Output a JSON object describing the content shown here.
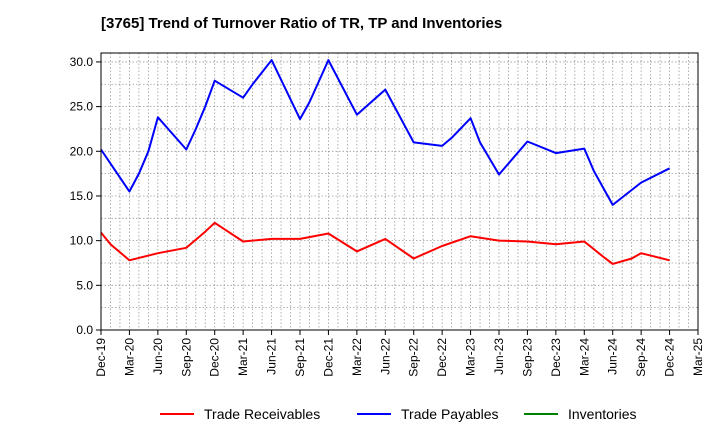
{
  "chart_data": {
    "type": "line",
    "title": "[3765]  Trend of Turnover Ratio of TR, TP and Inventories",
    "xlabel": "",
    "ylabel": "",
    "x_tick_labels": [
      "Dec-19",
      "Mar-20",
      "Jun-20",
      "Sep-20",
      "Dec-20",
      "Mar-21",
      "Jun-21",
      "Sep-21",
      "Dec-21",
      "Mar-22",
      "Jun-22",
      "Sep-22",
      "Dec-22",
      "Mar-23",
      "Jun-23",
      "Sep-23",
      "Dec-23",
      "Mar-24",
      "Jun-24",
      "Sep-24",
      "Dec-24",
      "Mar-25"
    ],
    "y_tick_labels": [
      "0.0",
      "5.0",
      "10.0",
      "15.0",
      "20.0",
      "25.0",
      "30.0"
    ],
    "ylim": [
      0,
      31
    ],
    "grid": true,
    "legend_position": "bottom",
    "series": [
      {
        "name": "Trade Receivables",
        "color": "#ff0000",
        "points": [
          [
            "Dec-19",
            10.9
          ],
          [
            "Jan-20",
            9.6
          ],
          [
            "Mar-20",
            7.8
          ],
          [
            "Jun-20",
            8.6
          ],
          [
            "Sep-20",
            9.2
          ],
          [
            "Nov-20",
            11.0
          ],
          [
            "Dec-20",
            12.0
          ],
          [
            "Mar-21",
            9.9
          ],
          [
            "Jun-21",
            10.2
          ],
          [
            "Sep-21",
            10.2
          ],
          [
            "Dec-21",
            10.8
          ],
          [
            "Mar-22",
            8.8
          ],
          [
            "Jun-22",
            10.2
          ],
          [
            "Sep-22",
            8.0
          ],
          [
            "Dec-22",
            9.4
          ],
          [
            "Mar-23",
            10.5
          ],
          [
            "Jun-23",
            10.0
          ],
          [
            "Sep-23",
            9.9
          ],
          [
            "Dec-23",
            9.6
          ],
          [
            "Mar-24",
            9.9
          ],
          [
            "May-24",
            8.2
          ],
          [
            "Jun-24",
            7.4
          ],
          [
            "Aug-24",
            8.0
          ],
          [
            "Sep-24",
            8.6
          ],
          [
            "Dec-24",
            7.8
          ]
        ]
      },
      {
        "name": "Trade Payables",
        "color": "#0000ff",
        "points": [
          [
            "Dec-19",
            20.2
          ],
          [
            "Mar-20",
            15.5
          ],
          [
            "Apr-20",
            17.5
          ],
          [
            "May-20",
            20.0
          ],
          [
            "Jun-20",
            23.8
          ],
          [
            "Sep-20",
            20.2
          ],
          [
            "Oct-20",
            22.5
          ],
          [
            "Nov-20",
            25.0
          ],
          [
            "Dec-20",
            27.9
          ],
          [
            "Mar-21",
            26.0
          ],
          [
            "Apr-21",
            27.5
          ],
          [
            "Jun-21",
            30.2
          ],
          [
            "Sep-21",
            23.6
          ],
          [
            "Oct-21",
            25.5
          ],
          [
            "Dec-21",
            30.2
          ],
          [
            "Mar-22",
            24.1
          ],
          [
            "Jun-22",
            26.9
          ],
          [
            "Sep-22",
            21.0
          ],
          [
            "Dec-22",
            20.6
          ],
          [
            "Jan-23",
            21.5
          ],
          [
            "Mar-23",
            23.7
          ],
          [
            "Apr-23",
            21.0
          ],
          [
            "Jun-23",
            17.4
          ],
          [
            "Sep-23",
            21.1
          ],
          [
            "Dec-23",
            19.8
          ],
          [
            "Mar-24",
            20.3
          ],
          [
            "Apr-24",
            17.8
          ],
          [
            "Jun-24",
            14.0
          ],
          [
            "Sep-24",
            16.5
          ],
          [
            "Dec-24",
            18.1
          ]
        ]
      },
      {
        "name": "Inventories",
        "color": "#008000",
        "points": []
      }
    ]
  }
}
